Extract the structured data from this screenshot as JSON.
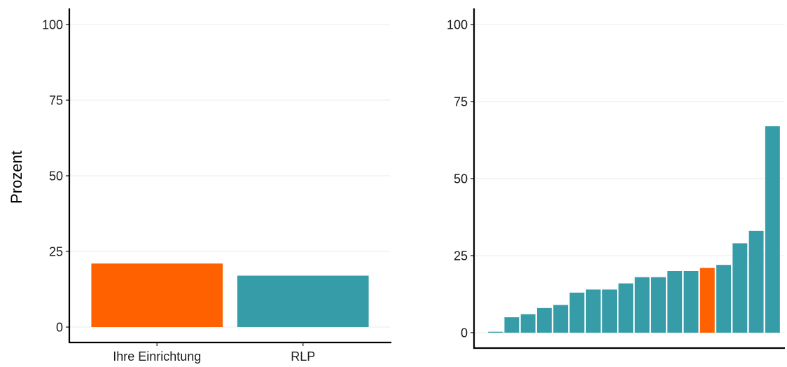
{
  "colors": {
    "highlight": "#FF6000",
    "base": "#359CA8",
    "grid": "#EBEBEB",
    "axis": "#000000"
  },
  "chart_data": [
    {
      "type": "bar",
      "categories": [
        "Ihre Einrichtung",
        "RLP"
      ],
      "values": [
        21,
        17
      ],
      "ylabel": "Prozent",
      "ylim": [
        0,
        100
      ],
      "yticks": [
        "0",
        "25",
        "50",
        "75",
        "100"
      ],
      "grid": "horizontal",
      "bar_colors": [
        "highlight",
        "base"
      ]
    },
    {
      "type": "bar",
      "values": [
        0.3,
        5,
        6,
        8,
        9,
        13,
        14,
        14,
        16,
        18,
        18,
        20,
        20,
        21,
        22,
        29,
        33,
        67
      ],
      "highlight_index": 13,
      "ylim": [
        0,
        100
      ],
      "yticks": [
        "0",
        "25",
        "50",
        "75",
        "100"
      ],
      "grid": "horizontal",
      "sorted": "ascending"
    }
  ]
}
